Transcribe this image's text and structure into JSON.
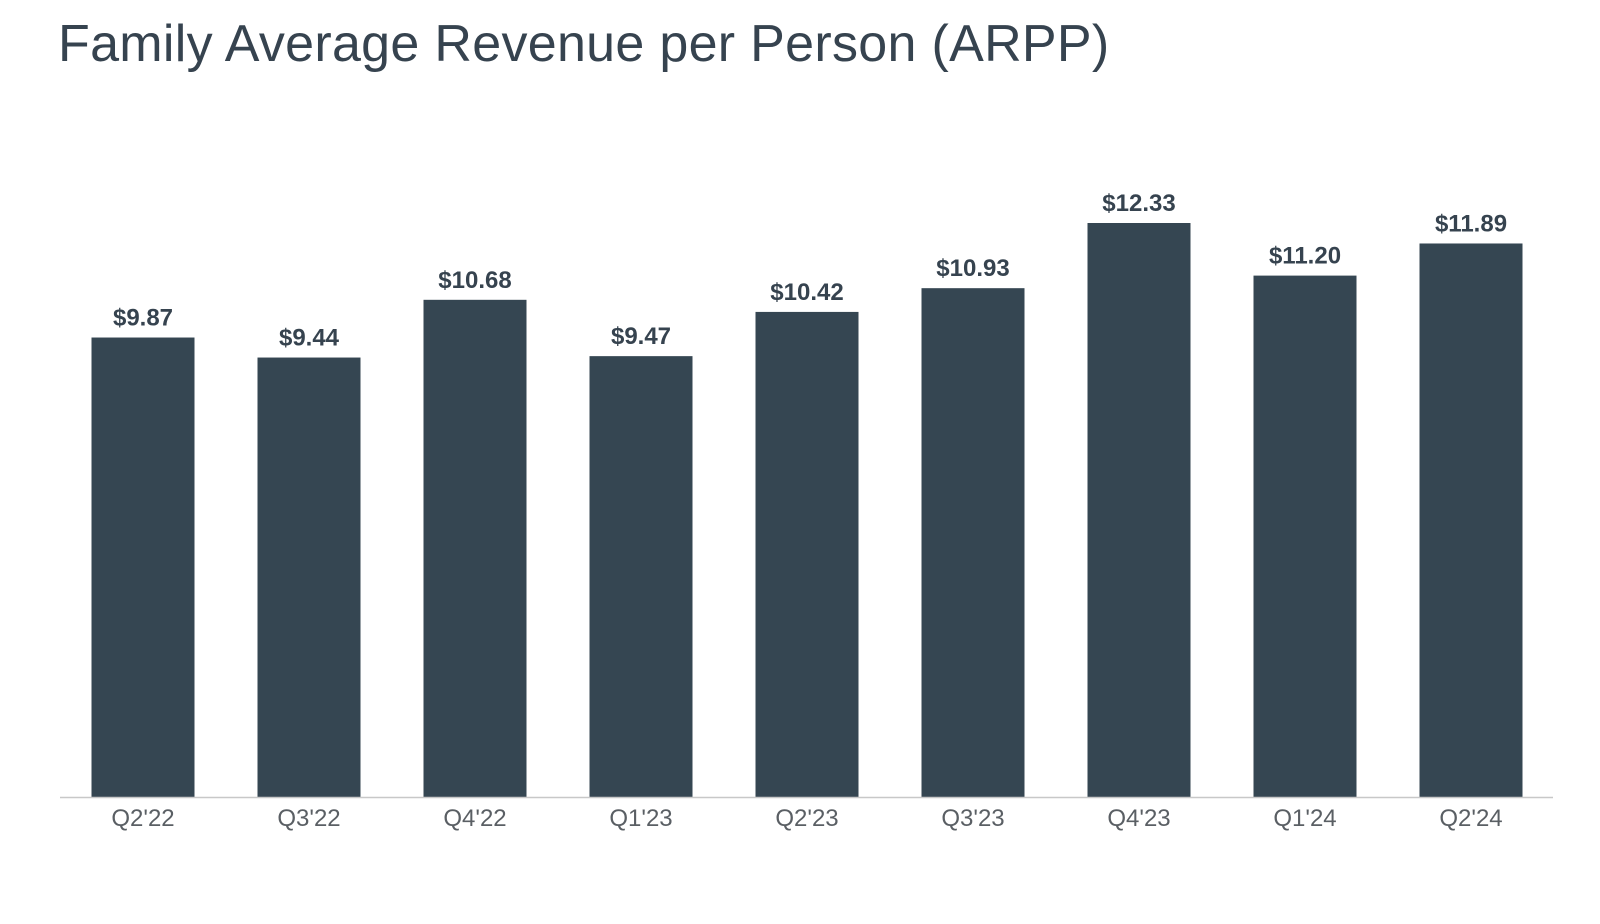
{
  "chart_data": {
    "type": "bar",
    "title": "Family Average Revenue per Person (ARPP)",
    "categories": [
      "Q2'22",
      "Q3'22",
      "Q4'22",
      "Q1'23",
      "Q2'23",
      "Q3'23",
      "Q4'23",
      "Q1'24",
      "Q2'24"
    ],
    "values": [
      9.87,
      9.44,
      10.68,
      9.47,
      10.42,
      10.93,
      12.33,
      11.2,
      11.89
    ],
    "value_labels": [
      "$9.87",
      "$9.44",
      "$10.68",
      "$9.47",
      "$10.42",
      "$10.93",
      "$12.33",
      "$11.20",
      "$11.89"
    ],
    "xlabel": "",
    "ylabel": "",
    "ylim": [
      0,
      12.33
    ],
    "grid": false,
    "legend": "none",
    "colors": {
      "bar": "#354652",
      "title": "#36434f",
      "value_label": "#36434f",
      "tick_label": "#5a5f64",
      "axis": "#c8c8c8"
    }
  }
}
